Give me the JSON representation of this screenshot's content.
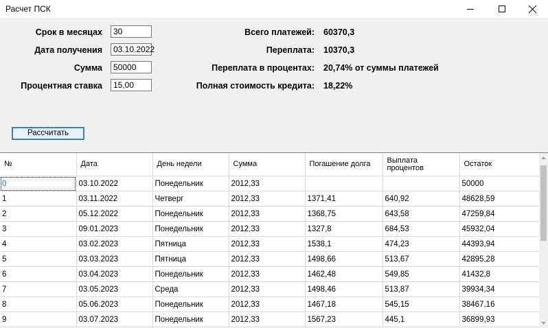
{
  "window": {
    "title": "Расчет ПСК"
  },
  "form": {
    "term_label": "Срок в месяцах",
    "term_value": "30",
    "date_label": "Дата получения",
    "date_value": "03.10.2022",
    "sum_label": "Сумма",
    "sum_value": "50000",
    "rate_label": "Процентная ставка",
    "rate_value": "15,00",
    "calc_button": "Рассчитать"
  },
  "summary": {
    "total_label": "Всего платежей:",
    "total_value": "60370,3",
    "over_label": "Переплата:",
    "over_value": "10370,3",
    "over_pct_label": "Переплата в процентах:",
    "over_pct_value": "20,74% от суммы платежей",
    "psk_label": "Полная стоимость кредита:",
    "psk_value": "18,22%"
  },
  "table": {
    "headers": [
      "№",
      "Дата",
      "День недели",
      "Сумма",
      "Погашение долга",
      "Выплата процентов",
      "Остаток"
    ],
    "rows": [
      [
        "0",
        "03.10.2022",
        "Понедельник",
        "2012,33",
        "",
        "",
        "50000"
      ],
      [
        "1",
        "03.11.2022",
        "Четверг",
        "2012,33",
        "1371,41",
        "640,92",
        "48628,59"
      ],
      [
        "2",
        "05.12.2022",
        "Понедельник",
        "2012,33",
        "1368,75",
        "643,58",
        "47259,84"
      ],
      [
        "3",
        "09.01.2023",
        "Понедельник",
        "2012,33",
        "1327,8",
        "684,53",
        "45932,04"
      ],
      [
        "4",
        "03.02.2023",
        "Пятница",
        "2012,33",
        "1538,1",
        "474,23",
        "44393,94"
      ],
      [
        "5",
        "03.03.2023",
        "Пятница",
        "2012,33",
        "1498,66",
        "513,67",
        "42895,28"
      ],
      [
        "6",
        "03.04.2023",
        "Понедельник",
        "2012,33",
        "1462,48",
        "549,85",
        "41432,8"
      ],
      [
        "7",
        "03.05.2023",
        "Среда",
        "2012,33",
        "1498,46",
        "513,87",
        "39934,34"
      ],
      [
        "8",
        "05.06.2023",
        "Понедельник",
        "2012,33",
        "1467,18",
        "545,15",
        "38467,16"
      ],
      [
        "9",
        "03.07.2023",
        "Понедельник",
        "2012,33",
        "1567,23",
        "445,1",
        "36899,93"
      ]
    ]
  }
}
